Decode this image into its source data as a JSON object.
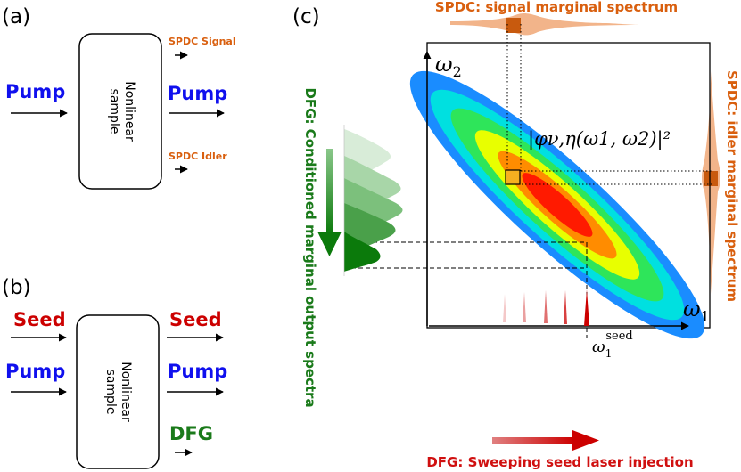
{
  "panel_a": {
    "label": "(a)",
    "input_label": "Pump",
    "box_text_line1": "Nonlinear",
    "box_text_line2": "sample",
    "signal_label": "SPDC Signal",
    "pump_out_label": "Pump",
    "idler_label": "SPDC Idler"
  },
  "panel_b": {
    "label": "(b)",
    "seed_in_label": "Seed",
    "pump_in_label": "Pump",
    "box_text_line1": "Nonlinear",
    "box_text_line2": "sample",
    "seed_out_label": "Seed",
    "pump_out_label": "Pump",
    "dfg_label": "DFG"
  },
  "panel_c": {
    "label": "(c)",
    "signal_title": "SPDC: signal marginal spectrum",
    "idler_title": "SPDC: idler marginal spectrum",
    "dfg_title": "DFG: Conditioned marginal output spectra",
    "seed_title": "DFG: Sweeping seed laser injection",
    "axis_x": "ω",
    "axis_x_sub": "1",
    "axis_y": "ω",
    "axis_y_sub": "2",
    "jsa_label": "|φν,η(ω1, ω2)|²",
    "seed_marker": "ω",
    "seed_marker_sub": "1",
    "seed_marker_sup": "seed"
  },
  "colors": {
    "pump": "#1010ee",
    "seed": "#cc0000",
    "dfg": "#1a7a1a",
    "spdc": "#d95f0e",
    "signal_fill": "#f2b48a"
  }
}
